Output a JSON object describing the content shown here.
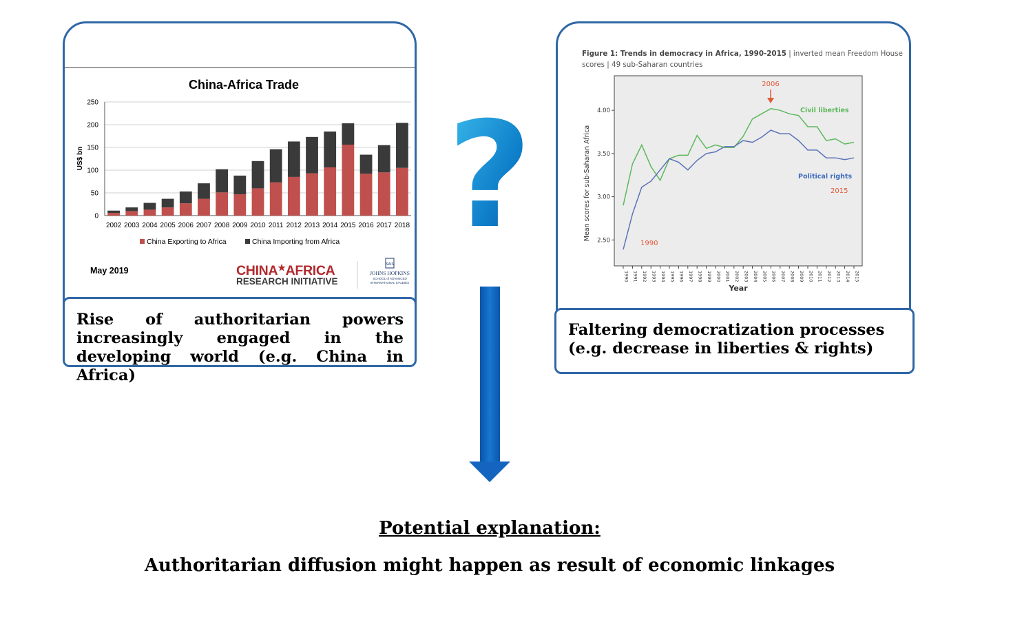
{
  "left_figure": {
    "chart_data": {
      "type": "bar",
      "title": "China-Africa Trade",
      "ylabel": "US$ bn",
      "ylim": [
        0,
        250
      ],
      "yticks": [
        "0",
        "50",
        "100",
        "150",
        "200",
        "250"
      ],
      "categories": [
        "2002",
        "2003",
        "2004",
        "2005",
        "2006",
        "2007",
        "2008",
        "2009",
        "2010",
        "2011",
        "2012",
        "2013",
        "2014",
        "2015",
        "2016",
        "2017",
        "2018"
      ],
      "series": [
        {
          "name": "China Exporting to Africa",
          "color": "#c0504d",
          "values": [
            6,
            10,
            13,
            18,
            27,
            37,
            51,
            47,
            60,
            73,
            85,
            93,
            106,
            156,
            92,
            95,
            105
          ]
        },
        {
          "name": "China Importing from Africa",
          "color": "#3a3a3a",
          "values": [
            5,
            8,
            15,
            19,
            26,
            34,
            51,
            41,
            60,
            73,
            78,
            80,
            79,
            47,
            42,
            60,
            99
          ]
        }
      ],
      "stacked": true,
      "legend": "bottom",
      "grid": true
    },
    "date_note": "May 2019",
    "logo_line1_a": "CHINA",
    "logo_line1_b": "AFRICA",
    "logo_line2": "RESEARCH INITIATIVE",
    "jh_logo_text": "JOHNS HOPKINS",
    "jh_logo_sub1": "SCHOOL of ADVANCED",
    "jh_logo_sub2": "INTERNATIONAL STUDIES",
    "jh_seal_text": "SAIS"
  },
  "left_caption": "Rise of authoritarian powers increasingly engaged in the developing world (e.g. China in Africa)",
  "right_figure": {
    "title_bold": "Figure 1: Trends in democracy in Africa, 1990-2015",
    "title_rest": " | inverted mean Freedom House",
    "title_line2": "scores | 49 sub-Saharan countries",
    "chart_data": {
      "type": "line",
      "xlabel": "Year",
      "ylabel": "Mean scores for sub-Saharan Africa",
      "ylim": [
        2.2,
        4.4
      ],
      "yticks": [
        "2.50",
        "3.00",
        "3.50",
        "4.00"
      ],
      "x": [
        "1990",
        "1991",
        "1992",
        "1993",
        "1994",
        "1995",
        "1996",
        "1997",
        "1998",
        "1999",
        "2000",
        "2001",
        "2002",
        "2003",
        "2004",
        "2005",
        "2006",
        "2007",
        "2008",
        "2009",
        "2010",
        "2011",
        "2012",
        "2013",
        "2014",
        "2015"
      ],
      "series": [
        {
          "name": "Civil liberties",
          "color": "#5cb85c",
          "values": [
            2.9,
            3.38,
            3.6,
            3.35,
            3.19,
            3.44,
            3.48,
            3.48,
            3.71,
            3.56,
            3.6,
            3.57,
            3.57,
            3.7,
            3.9,
            3.96,
            4.02,
            4.0,
            3.96,
            3.94,
            3.81,
            3.81,
            3.65,
            3.67,
            3.61,
            3.63
          ]
        },
        {
          "name": "Political rights",
          "color": "#5b73b8",
          "values": [
            2.39,
            2.8,
            3.11,
            3.18,
            3.31,
            3.44,
            3.4,
            3.31,
            3.42,
            3.5,
            3.52,
            3.58,
            3.58,
            3.65,
            3.63,
            3.69,
            3.77,
            3.73,
            3.73,
            3.65,
            3.54,
            3.54,
            3.45,
            3.45,
            3.43,
            3.45
          ]
        }
      ],
      "annotations": [
        "2006",
        "1990",
        "2015"
      ]
    }
  },
  "right_caption": "Faltering democratization processes (e.g. decrease in liberties & rights)",
  "question_mark": "?",
  "conclusion_heading": "Potential explanation:",
  "conclusion_text": "Authoritarian diffusion might happen as result of economic linkages",
  "colors": {
    "panel_border": "#2f67a6",
    "arrow": "#1565c0",
    "logo_red": "#b22a2e"
  }
}
